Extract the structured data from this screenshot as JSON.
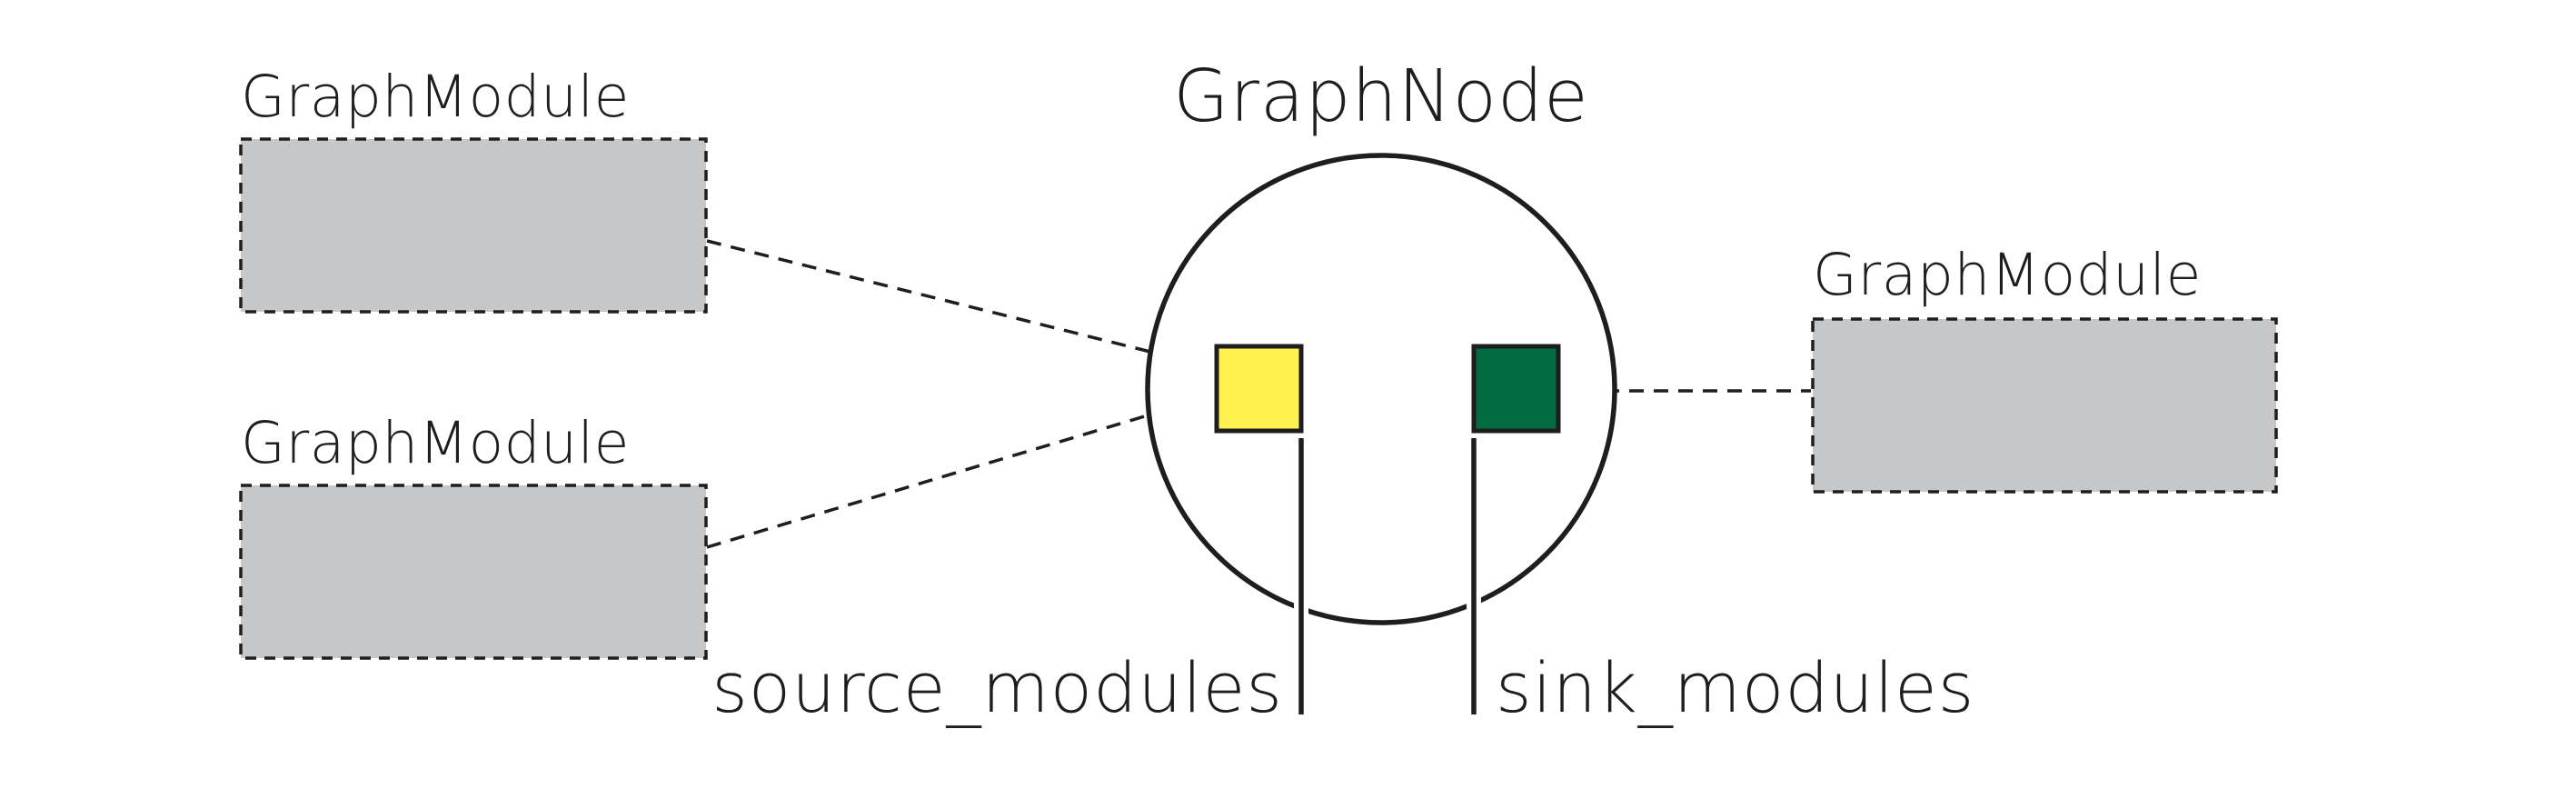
{
  "diagram": {
    "title": "",
    "colors": {
      "module_fill": "#c6c7c9",
      "outline": "#1e1e1e",
      "source_port": "#fff24f",
      "sink_port": "#016b42",
      "background": "#ffffff"
    },
    "node": {
      "label": "GraphNode",
      "source_port": {
        "label": "source_modules"
      },
      "sink_port": {
        "label": "sink_modules"
      }
    },
    "modules": [
      {
        "id": "left-top",
        "label": "GraphModule",
        "connects_to": "source_modules"
      },
      {
        "id": "left-bottom",
        "label": "GraphModule",
        "connects_to": "source_modules"
      },
      {
        "id": "right",
        "label": "GraphModule",
        "connects_to": "sink_modules"
      }
    ]
  }
}
